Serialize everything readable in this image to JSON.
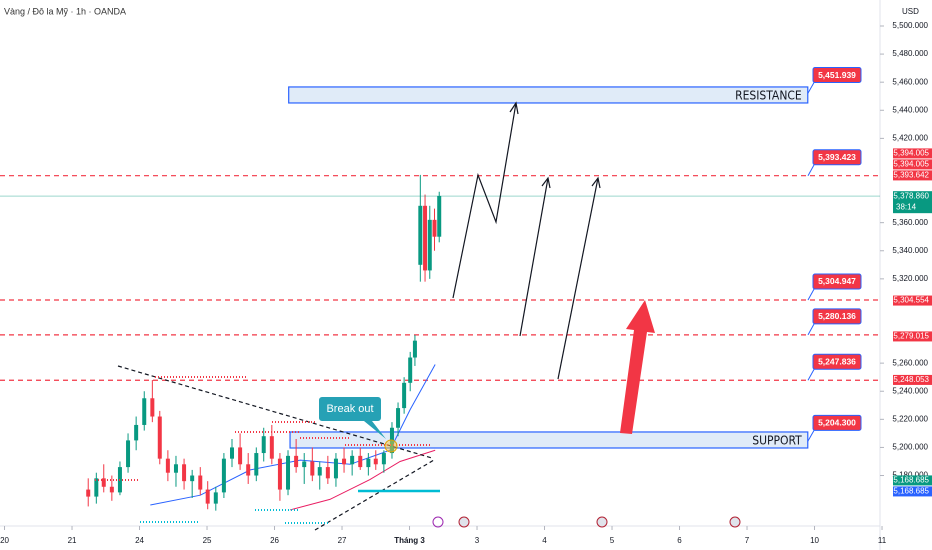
{
  "chart_data": {
    "type": "candlestick",
    "title": "Vàng / Đô la Mỹ · 1h · OANDA",
    "currency": "USD",
    "up_color": "#089981",
    "down_color": "#f23645",
    "xlim": [
      -1.067,
      11.97
    ],
    "ylim": [
      5151.9,
      5518.5
    ],
    "xticks": [
      {
        "value": -1,
        "label": "20"
      },
      {
        "value": 0,
        "label": "21"
      },
      {
        "value": 1,
        "label": "24"
      },
      {
        "value": 2,
        "label": "25"
      },
      {
        "value": 3,
        "label": "26"
      },
      {
        "value": 4,
        "label": "27"
      },
      {
        "value": 5,
        "label": "Tháng 3"
      },
      {
        "value": 6,
        "label": "3"
      },
      {
        "value": 7,
        "label": "4"
      },
      {
        "value": 8,
        "label": "5"
      },
      {
        "value": 9,
        "label": "6"
      },
      {
        "value": 10,
        "label": "7"
      },
      {
        "value": 11,
        "label": "10"
      },
      {
        "value": 12,
        "label": "11"
      }
    ],
    "yticks": [
      {
        "value": 5500,
        "label": "5,500.000"
      },
      {
        "value": 5480,
        "label": "5,480.000"
      },
      {
        "value": 5460,
        "label": "5,460.000"
      },
      {
        "value": 5440,
        "label": "5,440.000"
      },
      {
        "value": 5420,
        "label": "5,420.000"
      },
      {
        "value": 5360,
        "label": "5,360.000"
      },
      {
        "value": 5340,
        "label": "5,340.000"
      },
      {
        "value": 5320,
        "label": "5,320.000"
      },
      {
        "value": 5260,
        "label": "5,260.000"
      },
      {
        "value": 5240,
        "label": "5,240.000"
      },
      {
        "value": 5220,
        "label": "5,220.000"
      },
      {
        "value": 5200,
        "label": "5,200.000"
      },
      {
        "value": 5180,
        "label": "5,180.000"
      }
    ],
    "candles": {
      "x": [
        0.24,
        0.36,
        0.47,
        0.59,
        0.71,
        0.83,
        0.95,
        1.07,
        1.19,
        1.3,
        1.42,
        1.54,
        1.66,
        1.78,
        1.9,
        2.01,
        2.13,
        2.25,
        2.37,
        2.49,
        2.61,
        2.73,
        2.84,
        2.96,
        3.08,
        3.2,
        3.32,
        3.44,
        3.56,
        3.67,
        3.79,
        3.91,
        4.03,
        4.15,
        4.27,
        4.39,
        4.5,
        4.62,
        4.74,
        4.83,
        4.92,
        5.01,
        5.08,
        5.16,
        5.23,
        5.3,
        5.37,
        5.44
      ],
      "open": [
        5170,
        5165,
        5178,
        5172,
        5168,
        5186,
        5205,
        5216,
        5235,
        5222,
        5192,
        5182,
        5188,
        5176,
        5180,
        5170,
        5160,
        5168,
        5192,
        5200,
        5188,
        5180,
        5196,
        5208,
        5192,
        5170,
        5194,
        5186,
        5190,
        5180,
        5186,
        5178,
        5192,
        5188,
        5194,
        5186,
        5192,
        5188,
        5196,
        5214,
        5228,
        5246,
        5264,
        5330,
        5372,
        5326,
        5362,
        5350
      ],
      "high": [
        5178,
        5182,
        5188,
        5180,
        5190,
        5210,
        5222,
        5240,
        5248,
        5226,
        5198,
        5194,
        5192,
        5184,
        5186,
        5176,
        5172,
        5196,
        5206,
        5210,
        5196,
        5200,
        5214,
        5216,
        5196,
        5198,
        5206,
        5196,
        5200,
        5190,
        5194,
        5196,
        5200,
        5198,
        5200,
        5196,
        5198,
        5198,
        5218,
        5232,
        5250,
        5268,
        5280,
        5394,
        5380,
        5372,
        5370,
        5382
      ],
      "low": [
        5158,
        5160,
        5168,
        5162,
        5166,
        5182,
        5198,
        5212,
        5218,
        5188,
        5176,
        5172,
        5170,
        5164,
        5166,
        5156,
        5155,
        5164,
        5186,
        5184,
        5174,
        5176,
        5190,
        5188,
        5162,
        5166,
        5182,
        5174,
        5176,
        5170,
        5174,
        5172,
        5182,
        5180,
        5184,
        5180,
        5184,
        5182,
        5192,
        5208,
        5224,
        5240,
        5258,
        5318,
        5318,
        5320,
        5340,
        5346
      ],
      "close": [
        5165,
        5178,
        5172,
        5168,
        5186,
        5205,
        5216,
        5235,
        5222,
        5192,
        5182,
        5188,
        5176,
        5180,
        5170,
        5160,
        5168,
        5192,
        5200,
        5188,
        5180,
        5196,
        5208,
        5192,
        5170,
        5194,
        5186,
        5190,
        5180,
        5186,
        5178,
        5192,
        5188,
        5194,
        5186,
        5192,
        5188,
        5196,
        5214,
        5228,
        5246,
        5264,
        5276,
        5372,
        5326,
        5362,
        5350,
        5379
      ]
    },
    "moving_averages": [
      {
        "color": "#2962ff",
        "x": [
          1.16,
          1.9,
          2.64,
          3.38,
          4.12,
          4.71,
          5.01,
          5.38
        ],
        "values": [
          5159,
          5166,
          5184,
          5191,
          5188,
          5198,
          5227,
          5259
        ]
      },
      {
        "color": "#e91e63",
        "x": [
          3.23,
          3.82,
          4.41,
          4.86,
          5.38
        ],
        "values": [
          5155.5,
          5163,
          5177,
          5190,
          5198
        ]
      }
    ],
    "zones": [
      {
        "name": "RESISTANCE",
        "low": 5445.2,
        "high": 5456.6,
        "x_start": 3.21,
        "x_end": 10.9,
        "value": 5451.939,
        "label": "5,451.939"
      },
      {
        "name": "SUPPORT",
        "low": 5199.6,
        "high": 5211,
        "x_start": 3.23,
        "x_end": 10.9,
        "value": 5204.3,
        "label": "5,204.300"
      }
    ],
    "levels": [
      {
        "value": 5393.423,
        "label": "5,393.423"
      },
      {
        "value": 5304.947,
        "label": "5,304.947"
      },
      {
        "value": 5280.136,
        "label": "5,280.136"
      },
      {
        "value": 5247.836,
        "label": "5,247.836"
      }
    ],
    "price_labels": [
      {
        "value": 5394.005,
        "label": "5,394.005",
        "color": "#f23645"
      },
      {
        "value": 5394.005,
        "label": "5,394.005",
        "color": "#f23645"
      },
      {
        "value": 5393.642,
        "label": "5,393.642",
        "color": "#f23645"
      },
      {
        "value": 5378.86,
        "label": "5,378.860",
        "color": "#089981",
        "countdown": "38:14"
      },
      {
        "value": 5304.554,
        "label": "5,304.554",
        "color": "#f23645"
      },
      {
        "value": 5279.015,
        "label": "5,279.015",
        "color": "#f23645"
      },
      {
        "value": 5248.053,
        "label": "5,248.053",
        "color": "#f23645"
      },
      {
        "value": 5168.685,
        "label": "5,168.685",
        "color": "#089981"
      },
      {
        "value": 5168.685,
        "label": "5,168.685",
        "color": "#2962ff"
      }
    ],
    "annotation": "Break out"
  }
}
